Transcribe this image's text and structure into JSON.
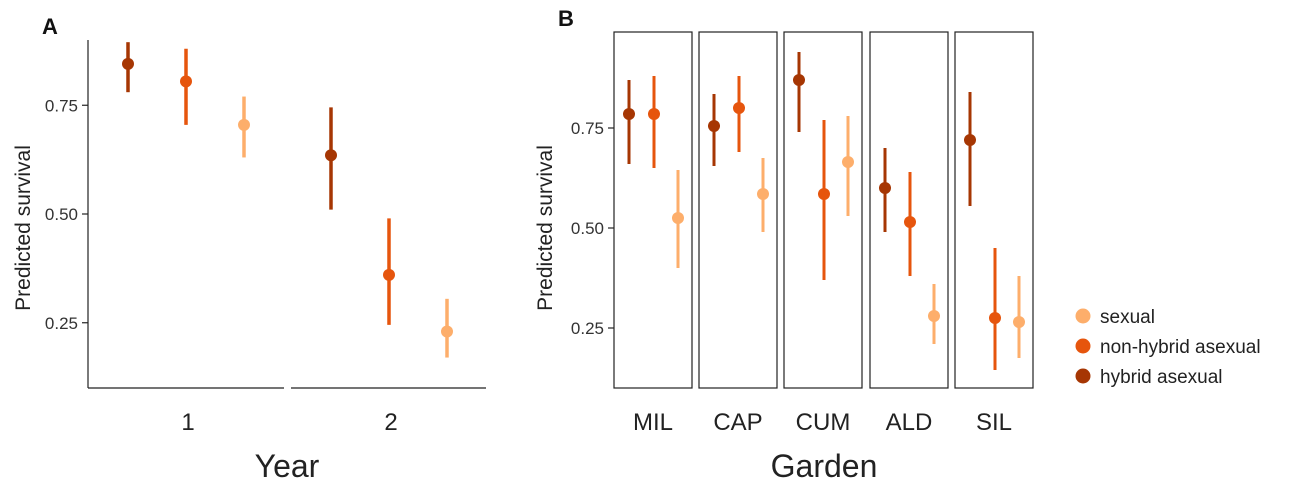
{
  "chart_data": [
    {
      "type": "scatter",
      "panel": "A",
      "xlabel": "Year",
      "ylabel": "Predicted survival",
      "categories": [
        "1",
        "2"
      ],
      "yticks": [
        "0.25",
        "0.50",
        "0.75"
      ],
      "ylim": [
        0.1,
        0.9
      ],
      "series": [
        {
          "name": "hybrid asexual",
          "values": [
            0.845,
            0.635
          ],
          "lower": [
            0.78,
            0.51
          ],
          "upper": [
            0.895,
            0.745
          ]
        },
        {
          "name": "non-hybrid asexual",
          "values": [
            0.805,
            0.36
          ],
          "lower": [
            0.705,
            0.245
          ],
          "upper": [
            0.88,
            0.49
          ]
        },
        {
          "name": "sexual",
          "values": [
            0.705,
            0.23
          ],
          "lower": [
            0.63,
            0.17
          ],
          "upper": [
            0.77,
            0.305
          ]
        }
      ]
    },
    {
      "type": "scatter",
      "panel": "B",
      "xlabel": "Garden",
      "ylabel": "Predicted survival",
      "categories": [
        "MIL",
        "CAP",
        "CUM",
        "ALD",
        "SIL"
      ],
      "yticks": [
        "0.25",
        "0.50",
        "0.75"
      ],
      "ylim": [
        0.1,
        0.99
      ],
      "series": [
        {
          "name": "hybrid asexual",
          "values": [
            0.785,
            0.755,
            0.87,
            0.6,
            0.72
          ],
          "lower": [
            0.66,
            0.655,
            0.74,
            0.49,
            0.555
          ],
          "upper": [
            0.87,
            0.835,
            0.94,
            0.7,
            0.84
          ]
        },
        {
          "name": "non-hybrid asexual",
          "values": [
            0.785,
            0.8,
            0.585,
            0.515,
            0.275
          ],
          "lower": [
            0.65,
            0.69,
            0.37,
            0.38,
            0.145
          ],
          "upper": [
            0.88,
            0.88,
            0.77,
            0.64,
            0.45
          ]
        },
        {
          "name": "sexual",
          "values": [
            0.525,
            0.585,
            0.665,
            0.28,
            0.265
          ],
          "lower": [
            0.4,
            0.49,
            0.53,
            0.21,
            0.175
          ],
          "upper": [
            0.645,
            0.675,
            0.78,
            0.36,
            0.38
          ]
        }
      ]
    }
  ],
  "panels": {
    "a_label": "A",
    "b_label": "B"
  },
  "legend": {
    "items": [
      {
        "label": "sexual",
        "color": "#fdae6b"
      },
      {
        "label": "non-hybrid asexual",
        "color": "#e6550d"
      },
      {
        "label": "hybrid asexual",
        "color": "#a63603"
      }
    ]
  },
  "colors": {
    "hybrid asexual": "#a63603",
    "non-hybrid asexual": "#e6550d",
    "sexual": "#fdae6b"
  }
}
